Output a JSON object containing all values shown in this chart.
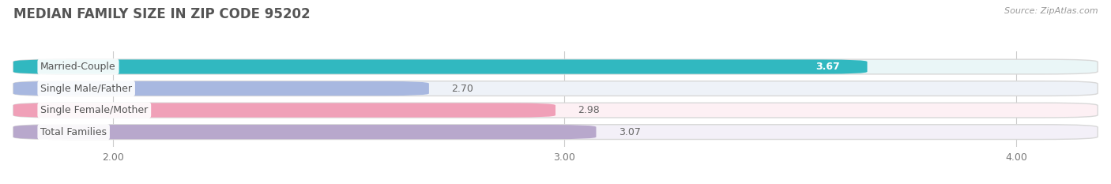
{
  "title": "MEDIAN FAMILY SIZE IN ZIP CODE 95202",
  "source": "Source: ZipAtlas.com",
  "categories": [
    "Married-Couple",
    "Single Male/Father",
    "Single Female/Mother",
    "Total Families"
  ],
  "values": [
    3.67,
    2.7,
    2.98,
    3.07
  ],
  "bar_colors": [
    "#31b8c0",
    "#a8b8e0",
    "#f0a0b8",
    "#b8a8cc"
  ],
  "bar_bg_colors": [
    "#eaf6f7",
    "#eef2f8",
    "#fdf0f4",
    "#f3f0f8"
  ],
  "xlim": [
    1.78,
    4.18
  ],
  "xmin": 1.78,
  "xmax": 4.18,
  "xticks": [
    2.0,
    3.0,
    4.0
  ],
  "xtick_labels": [
    "2.00",
    "3.00",
    "4.00"
  ],
  "background_color": "#ffffff",
  "label_color": "#555555",
  "value_color_inside": "#ffffff",
  "value_color_outside": "#666666",
  "title_color": "#555555",
  "title_fontsize": 12,
  "bar_height": 0.68,
  "label_fontsize": 9,
  "value_fontsize": 9,
  "tick_fontsize": 9,
  "source_fontsize": 8
}
